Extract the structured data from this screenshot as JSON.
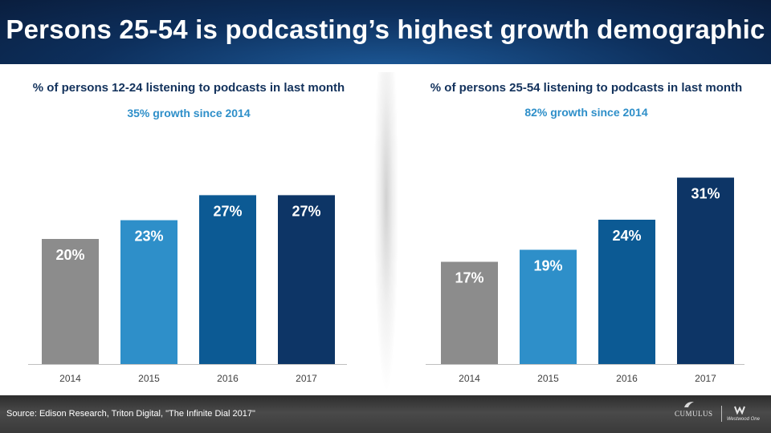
{
  "title": "Persons 25-54 is podcasting’s highest growth demographic",
  "charts": [
    {
      "heading": "% of persons 12-24 listening to podcasts in last month",
      "subheading": "35% growth since 2014"
    },
    {
      "heading": "% of persons 25-54 listening to podcasts in last month",
      "subheading": "82% growth since 2014"
    }
  ],
  "chart_data": [
    {
      "type": "bar",
      "title": "% of persons 12-24 listening to podcasts in last month",
      "subtitle": "35% growth since 2014",
      "categories": [
        "2014",
        "2015",
        "2016",
        "2017"
      ],
      "values": [
        20,
        23,
        27,
        27
      ],
      "value_labels": [
        "20%",
        "23%",
        "27%",
        "27%"
      ],
      "colors": [
        "#8c8c8c",
        "#2e8fc9",
        "#0c5a94",
        "#0d3566"
      ],
      "ylim": [
        0,
        40
      ],
      "grid": false,
      "legend": "none"
    },
    {
      "type": "bar",
      "title": "% of persons 25-54 listening to podcasts in last month",
      "subtitle": "82% growth since 2014",
      "categories": [
        "2014",
        "2015",
        "2016",
        "2017"
      ],
      "values": [
        17,
        19,
        24,
        31
      ],
      "value_labels": [
        "17%",
        "19%",
        "24%",
        "31%"
      ],
      "colors": [
        "#8c8c8c",
        "#2e8fc9",
        "#0c5a94",
        "#0d3566"
      ],
      "ylim": [
        0,
        40
      ],
      "grid": false,
      "legend": "none"
    }
  ],
  "footer": {
    "source": "Source: Edison Research, Triton Digital, \"The Infinite Dial 2017\"",
    "logo_left": "CUMULUS",
    "logo_right": "Westwood One"
  }
}
